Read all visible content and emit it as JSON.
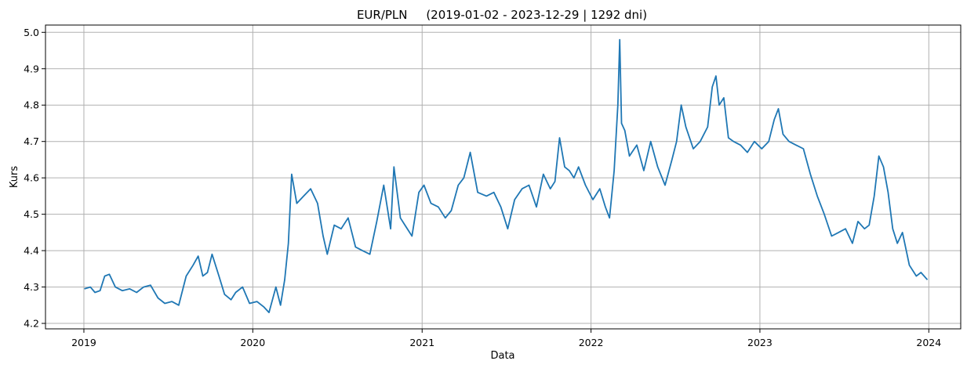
{
  "chart_data": {
    "type": "line",
    "title": "EUR/PLN     (2019-01-02 - 2023-12-29 | 1292 dni)",
    "xlabel": "Data",
    "ylabel": "Kurs",
    "x_type": "date",
    "xlim": [
      "2018-10-10",
      "2024-03-10"
    ],
    "ylim": [
      4.185,
      5.02
    ],
    "grid": true,
    "x_ticks": [
      {
        "label": "2019",
        "date": "2019-01-01"
      },
      {
        "label": "2020",
        "date": "2020-01-01"
      },
      {
        "label": "2021",
        "date": "2021-01-01"
      },
      {
        "label": "2022",
        "date": "2022-01-01"
      },
      {
        "label": "2023",
        "date": "2023-01-01"
      },
      {
        "label": "2024",
        "date": "2024-01-01"
      }
    ],
    "y_ticks": [
      {
        "label": "4.2",
        "value": 4.2
      },
      {
        "label": "4.3",
        "value": 4.3
      },
      {
        "label": "4.4",
        "value": 4.4
      },
      {
        "label": "4.5",
        "value": 4.5
      },
      {
        "label": "4.6",
        "value": 4.6
      },
      {
        "label": "4.7",
        "value": 4.7
      },
      {
        "label": "4.8",
        "value": 4.8
      },
      {
        "label": "4.9",
        "value": 4.9
      },
      {
        "label": "5.0",
        "value": 5.0
      }
    ],
    "series": [
      {
        "color": "#1f77b4",
        "x": [
          "2019-01-02",
          "2019-01-15",
          "2019-01-25",
          "2019-02-05",
          "2019-02-15",
          "2019-02-25",
          "2019-03-10",
          "2019-03-25",
          "2019-04-10",
          "2019-04-25",
          "2019-05-10",
          "2019-05-25",
          "2019-06-10",
          "2019-06-25",
          "2019-07-10",
          "2019-07-25",
          "2019-08-10",
          "2019-08-25",
          "2019-09-05",
          "2019-09-15",
          "2019-09-25",
          "2019-10-05",
          "2019-10-20",
          "2019-11-01",
          "2019-11-15",
          "2019-11-25",
          "2019-12-10",
          "2019-12-25",
          "2020-01-10",
          "2020-01-25",
          "2020-02-05",
          "2020-02-20",
          "2020-03-01",
          "2020-03-10",
          "2020-03-18",
          "2020-03-25",
          "2020-04-05",
          "2020-04-20",
          "2020-05-05",
          "2020-05-20",
          "2020-06-01",
          "2020-06-10",
          "2020-06-25",
          "2020-07-10",
          "2020-07-25",
          "2020-08-10",
          "2020-08-25",
          "2020-09-10",
          "2020-09-25",
          "2020-10-10",
          "2020-10-25",
          "2020-11-01",
          "2020-11-15",
          "2020-11-25",
          "2020-12-10",
          "2020-12-25",
          "2021-01-05",
          "2021-01-20",
          "2021-02-05",
          "2021-02-20",
          "2021-03-05",
          "2021-03-20",
          "2021-04-01",
          "2021-04-15",
          "2021-05-01",
          "2021-05-20",
          "2021-06-05",
          "2021-06-20",
          "2021-07-05",
          "2021-07-20",
          "2021-08-05",
          "2021-08-20",
          "2021-09-05",
          "2021-09-20",
          "2021-10-05",
          "2021-10-15",
          "2021-10-25",
          "2021-11-05",
          "2021-11-15",
          "2021-11-25",
          "2021-12-05",
          "2021-12-20",
          "2022-01-05",
          "2022-01-20",
          "2022-02-01",
          "2022-02-10",
          "2022-02-20",
          "2022-02-28",
          "2022-03-04",
          "2022-03-08",
          "2022-03-15",
          "2022-03-25",
          "2022-04-10",
          "2022-04-25",
          "2022-05-10",
          "2022-05-25",
          "2022-06-10",
          "2022-06-25",
          "2022-07-05",
          "2022-07-15",
          "2022-07-25",
          "2022-08-10",
          "2022-08-25",
          "2022-09-10",
          "2022-09-20",
          "2022-09-28",
          "2022-10-05",
          "2022-10-15",
          "2022-10-25",
          "2022-11-05",
          "2022-11-20",
          "2022-12-05",
          "2022-12-20",
          "2023-01-05",
          "2023-01-20",
          "2023-02-01",
          "2023-02-10",
          "2023-02-20",
          "2023-03-05",
          "2023-03-20",
          "2023-04-05",
          "2023-04-20",
          "2023-05-05",
          "2023-05-20",
          "2023-06-05",
          "2023-06-20",
          "2023-07-05",
          "2023-07-20",
          "2023-08-01",
          "2023-08-15",
          "2023-08-25",
          "2023-09-05",
          "2023-09-15",
          "2023-09-25",
          "2023-10-05",
          "2023-10-15",
          "2023-10-25",
          "2023-11-05",
          "2023-11-20",
          "2023-12-05",
          "2023-12-15",
          "2023-12-29"
        ],
        "y": [
          4.295,
          4.3,
          4.285,
          4.29,
          4.33,
          4.335,
          4.3,
          4.29,
          4.295,
          4.285,
          4.3,
          4.305,
          4.27,
          4.255,
          4.26,
          4.25,
          4.33,
          4.36,
          4.385,
          4.33,
          4.34,
          4.39,
          4.33,
          4.28,
          4.265,
          4.285,
          4.3,
          4.255,
          4.26,
          4.245,
          4.23,
          4.3,
          4.25,
          4.32,
          4.42,
          4.61,
          4.53,
          4.55,
          4.57,
          4.53,
          4.44,
          4.39,
          4.47,
          4.46,
          4.49,
          4.41,
          4.4,
          4.39,
          4.48,
          4.58,
          4.46,
          4.63,
          4.49,
          4.47,
          4.44,
          4.56,
          4.58,
          4.53,
          4.52,
          4.49,
          4.51,
          4.58,
          4.6,
          4.67,
          4.56,
          4.55,
          4.56,
          4.52,
          4.46,
          4.54,
          4.57,
          4.58,
          4.52,
          4.61,
          4.57,
          4.59,
          4.71,
          4.63,
          4.62,
          4.6,
          4.63,
          4.58,
          4.54,
          4.57,
          4.52,
          4.49,
          4.62,
          4.8,
          4.98,
          4.75,
          4.73,
          4.66,
          4.69,
          4.62,
          4.7,
          4.63,
          4.58,
          4.65,
          4.7,
          4.8,
          4.74,
          4.68,
          4.7,
          4.74,
          4.85,
          4.88,
          4.8,
          4.82,
          4.71,
          4.7,
          4.69,
          4.67,
          4.7,
          4.68,
          4.7,
          4.76,
          4.79,
          4.72,
          4.7,
          4.69,
          4.68,
          4.61,
          4.55,
          4.5,
          4.44,
          4.45,
          4.46,
          4.42,
          4.48,
          4.46,
          4.47,
          4.55,
          4.66,
          4.63,
          4.56,
          4.46,
          4.42,
          4.45,
          4.36,
          4.33,
          4.34,
          4.32
        ]
      }
    ]
  }
}
